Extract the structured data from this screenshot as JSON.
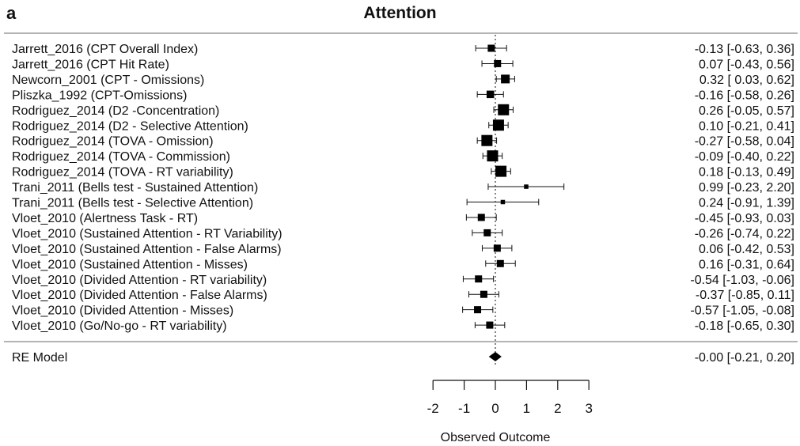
{
  "panel_letter": "a",
  "chart_data": {
    "type": "forest",
    "title": "Attention",
    "xlabel": "Observed Outcome",
    "xlim": [
      -2,
      3
    ],
    "xticks": [
      "-2",
      "-1",
      "0",
      "1",
      "2",
      "3"
    ],
    "reference_line": 0,
    "studies": [
      {
        "label": "Jarrett_2016 (CPT Overall Index)",
        "estimate": -0.13,
        "lower": -0.63,
        "upper": 0.36,
        "ci_text": "-0.13 [-0.63,  0.36]",
        "weight": 0.5
      },
      {
        "label": "Jarrett_2016 (CPT Hit Rate)",
        "estimate": 0.07,
        "lower": -0.43,
        "upper": 0.56,
        "ci_text": "0.07 [-0.43,  0.56]",
        "weight": 0.5
      },
      {
        "label": "Newcorn_2001 (CPT - Omissions)",
        "estimate": 0.32,
        "lower": 0.03,
        "upper": 0.62,
        "ci_text": "0.32 [ 0.03,  0.62]",
        "weight": 0.7
      },
      {
        "label": "Pliszka_1992 (CPT-Omissions)",
        "estimate": -0.16,
        "lower": -0.58,
        "upper": 0.26,
        "ci_text": "-0.16 [-0.58,  0.26]",
        "weight": 0.55
      },
      {
        "label": "Rodriguez_2014 (D2 -Concentration)",
        "estimate": 0.26,
        "lower": -0.05,
        "upper": 0.57,
        "ci_text": "0.26 [-0.05,  0.57]",
        "weight": 1.0
      },
      {
        "label": "Rodriguez_2014 (D2 - Selective Attention)",
        "estimate": 0.1,
        "lower": -0.21,
        "upper": 0.41,
        "ci_text": "0.10 [-0.21,  0.41]",
        "weight": 1.0
      },
      {
        "label": "Rodriguez_2014 (TOVA - Omission)",
        "estimate": -0.27,
        "lower": -0.58,
        "upper": 0.04,
        "ci_text": "-0.27 [-0.58,  0.04]",
        "weight": 1.0
      },
      {
        "label": "Rodriguez_2014 (TOVA - Commission)",
        "estimate": -0.09,
        "lower": -0.4,
        "upper": 0.22,
        "ci_text": "-0.09 [-0.40,  0.22]",
        "weight": 1.0
      },
      {
        "label": "Rodriguez_2014 (TOVA - RT variability)",
        "estimate": 0.18,
        "lower": -0.13,
        "upper": 0.49,
        "ci_text": "0.18 [-0.13,  0.49]",
        "weight": 1.0
      },
      {
        "label": "Trani_2011 (Bells test - Sustained Attention)",
        "estimate": 0.99,
        "lower": -0.23,
        "upper": 2.2,
        "ci_text": "0.99 [-0.23,  2.20]",
        "weight": 0.15
      },
      {
        "label": "Trani_2011 (Bells test - Selective Attention)",
        "estimate": 0.24,
        "lower": -0.91,
        "upper": 1.39,
        "ci_text": "0.24 [-0.91,  1.39]",
        "weight": 0.15
      },
      {
        "label": "Vloet_2010 (Alertness Task - RT)",
        "estimate": -0.45,
        "lower": -0.93,
        "upper": 0.03,
        "ci_text": "-0.45 [-0.93,  0.03]",
        "weight": 0.5
      },
      {
        "label": "Vloet_2010 (Sustained Attention - RT Variability)",
        "estimate": -0.26,
        "lower": -0.74,
        "upper": 0.22,
        "ci_text": "-0.26 [-0.74,  0.22]",
        "weight": 0.5
      },
      {
        "label": "Vloet_2010 (Sustained Attention - False Alarms)",
        "estimate": 0.06,
        "lower": -0.42,
        "upper": 0.53,
        "ci_text": "0.06 [-0.42,  0.53]",
        "weight": 0.5
      },
      {
        "label": "Vloet_2010 (Sustained Attention - Misses)",
        "estimate": 0.16,
        "lower": -0.31,
        "upper": 0.64,
        "ci_text": "0.16 [-0.31,  0.64]",
        "weight": 0.5
      },
      {
        "label": "Vloet_2010 (Divided Attention - RT variability)",
        "estimate": -0.54,
        "lower": -1.03,
        "upper": -0.06,
        "ci_text": "-0.54 [-1.03, -0.06]",
        "weight": 0.5
      },
      {
        "label": "Vloet_2010 (Divided Attention - False Alarms)",
        "estimate": -0.37,
        "lower": -0.85,
        "upper": 0.11,
        "ci_text": "-0.37 [-0.85,  0.11]",
        "weight": 0.5
      },
      {
        "label": "Vloet_2010 (Divided Attention - Misses)",
        "estimate": -0.57,
        "lower": -1.05,
        "upper": -0.08,
        "ci_text": "-0.57 [-1.05, -0.08]",
        "weight": 0.5
      },
      {
        "label": "Vloet_2010 (Go/No-go - RT variability)",
        "estimate": -0.18,
        "lower": -0.65,
        "upper": 0.3,
        "ci_text": "-0.18 [-0.65,  0.30]",
        "weight": 0.5
      }
    ],
    "summary": {
      "label": "RE Model",
      "estimate": -0.0,
      "lower": -0.21,
      "upper": 0.2,
      "ci_text": "-0.00 [-0.21,  0.20]"
    }
  }
}
